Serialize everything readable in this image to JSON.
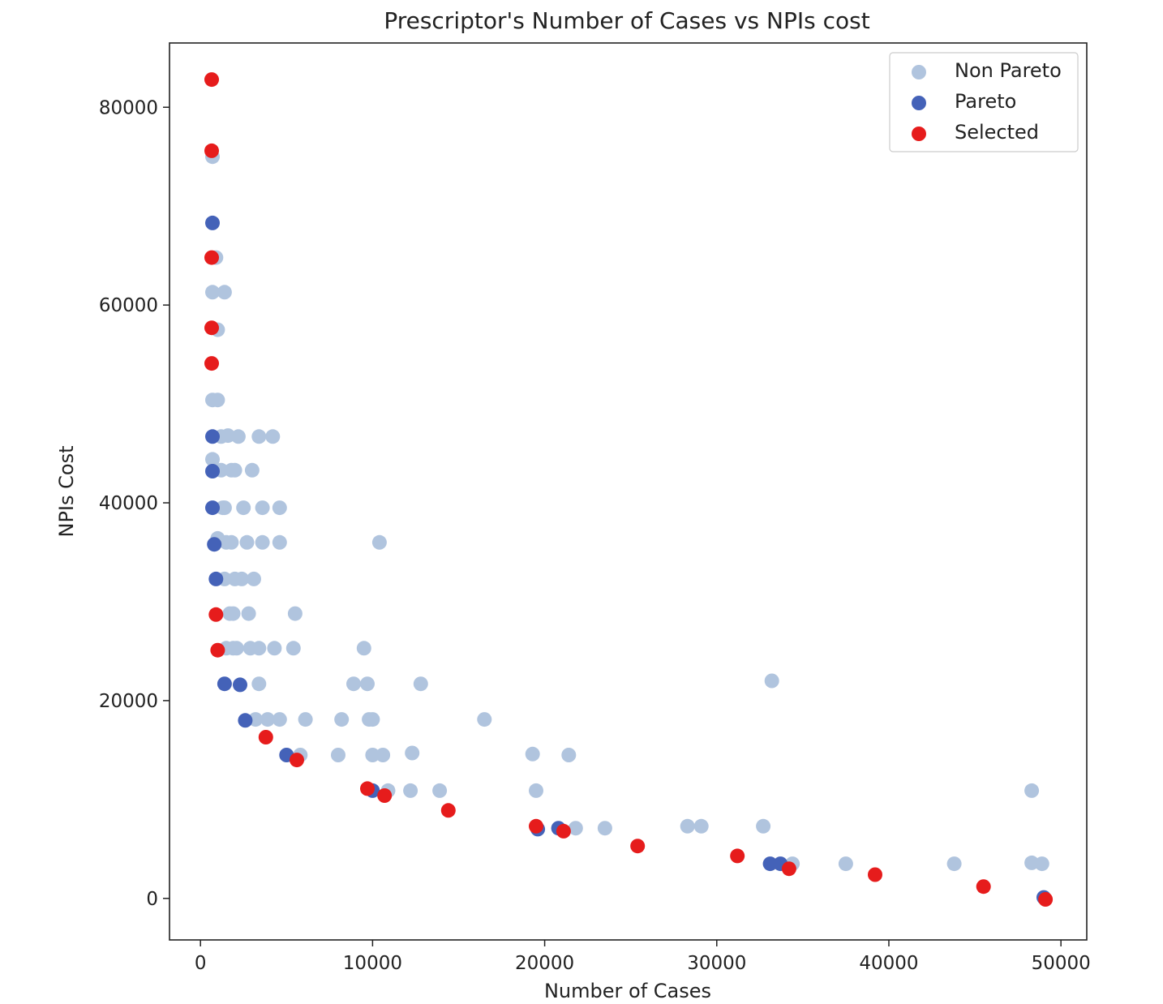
{
  "chart_data": {
    "type": "scatter",
    "title": "Prescriptor's Number of Cases vs NPIs cost",
    "xlabel": "Number of Cases",
    "ylabel": "NPIs Cost",
    "xlim": [
      -1800,
      51500
    ],
    "ylim": [
      -4200,
      86500
    ],
    "xticks": [
      0,
      10000,
      20000,
      30000,
      40000,
      50000
    ],
    "yticks": [
      0,
      20000,
      40000,
      60000,
      80000
    ],
    "grid": false,
    "legend_position": "top-right",
    "series": [
      {
        "name": "Non Pareto",
        "color": "#b0c4de",
        "points": [
          [
            700,
            75000
          ],
          [
            900,
            64800
          ],
          [
            700,
            61300
          ],
          [
            1400,
            61300
          ],
          [
            1000,
            57500
          ],
          [
            700,
            50400
          ],
          [
            1000,
            50400
          ],
          [
            1200,
            46700
          ],
          [
            1600,
            46800
          ],
          [
            2200,
            46700
          ],
          [
            3400,
            46700
          ],
          [
            4200,
            46700
          ],
          [
            700,
            44400
          ],
          [
            1200,
            43300
          ],
          [
            1800,
            43300
          ],
          [
            2000,
            43300
          ],
          [
            3000,
            43300
          ],
          [
            1300,
            39500
          ],
          [
            1400,
            39500
          ],
          [
            2500,
            39500
          ],
          [
            3600,
            39500
          ],
          [
            4600,
            39500
          ],
          [
            1000,
            36400
          ],
          [
            1500,
            36000
          ],
          [
            1800,
            36000
          ],
          [
            2700,
            36000
          ],
          [
            3600,
            36000
          ],
          [
            4600,
            36000
          ],
          [
            10400,
            36000
          ],
          [
            1400,
            32300
          ],
          [
            2000,
            32300
          ],
          [
            2400,
            32300
          ],
          [
            3100,
            32300
          ],
          [
            1700,
            28800
          ],
          [
            1900,
            28800
          ],
          [
            2800,
            28800
          ],
          [
            5500,
            28800
          ],
          [
            1500,
            25300
          ],
          [
            1900,
            25300
          ],
          [
            2100,
            25300
          ],
          [
            2900,
            25300
          ],
          [
            3400,
            25300
          ],
          [
            4300,
            25300
          ],
          [
            5400,
            25300
          ],
          [
            9500,
            25300
          ],
          [
            3400,
            21700
          ],
          [
            8900,
            21700
          ],
          [
            9700,
            21700
          ],
          [
            12800,
            21700
          ],
          [
            33200,
            22000
          ],
          [
            3200,
            18100
          ],
          [
            3900,
            18100
          ],
          [
            4600,
            18100
          ],
          [
            6100,
            18100
          ],
          [
            8200,
            18100
          ],
          [
            9800,
            18100
          ],
          [
            10000,
            18100
          ],
          [
            16500,
            18100
          ],
          [
            5800,
            14500
          ],
          [
            8000,
            14500
          ],
          [
            10000,
            14500
          ],
          [
            10600,
            14500
          ],
          [
            12300,
            14700
          ],
          [
            19300,
            14600
          ],
          [
            21400,
            14500
          ],
          [
            10900,
            10900
          ],
          [
            12200,
            10900
          ],
          [
            13900,
            10900
          ],
          [
            19500,
            10900
          ],
          [
            48300,
            10900
          ],
          [
            21800,
            7100
          ],
          [
            23500,
            7100
          ],
          [
            28300,
            7300
          ],
          [
            29100,
            7300
          ],
          [
            32700,
            7300
          ],
          [
            34400,
            3500
          ],
          [
            37500,
            3500
          ],
          [
            43800,
            3500
          ],
          [
            48300,
            3600
          ],
          [
            48900,
            3500
          ]
        ]
      },
      {
        "name": "Pareto",
        "color": "#4462b8",
        "points": [
          [
            700,
            68300
          ],
          [
            700,
            46700
          ],
          [
            700,
            43200
          ],
          [
            700,
            39500
          ],
          [
            800,
            35800
          ],
          [
            900,
            32300
          ],
          [
            1400,
            21700
          ],
          [
            2300,
            21600
          ],
          [
            2600,
            18000
          ],
          [
            5000,
            14500
          ],
          [
            10000,
            10900
          ],
          [
            19600,
            7000
          ],
          [
            20800,
            7100
          ],
          [
            33100,
            3500
          ],
          [
            33700,
            3500
          ],
          [
            49000,
            100
          ]
        ]
      },
      {
        "name": "Selected",
        "color": "#e61c1c",
        "points": [
          [
            650,
            82800
          ],
          [
            650,
            75600
          ],
          [
            650,
            64800
          ],
          [
            650,
            57700
          ],
          [
            650,
            54100
          ],
          [
            900,
            28700
          ],
          [
            1000,
            25100
          ],
          [
            3800,
            16300
          ],
          [
            5600,
            14000
          ],
          [
            9700,
            11100
          ],
          [
            10700,
            10400
          ],
          [
            14400,
            8900
          ],
          [
            19500,
            7300
          ],
          [
            21100,
            6800
          ],
          [
            25400,
            5300
          ],
          [
            31200,
            4300
          ],
          [
            34200,
            3000
          ],
          [
            39200,
            2400
          ],
          [
            45500,
            1200
          ],
          [
            49100,
            -100
          ]
        ]
      }
    ]
  }
}
